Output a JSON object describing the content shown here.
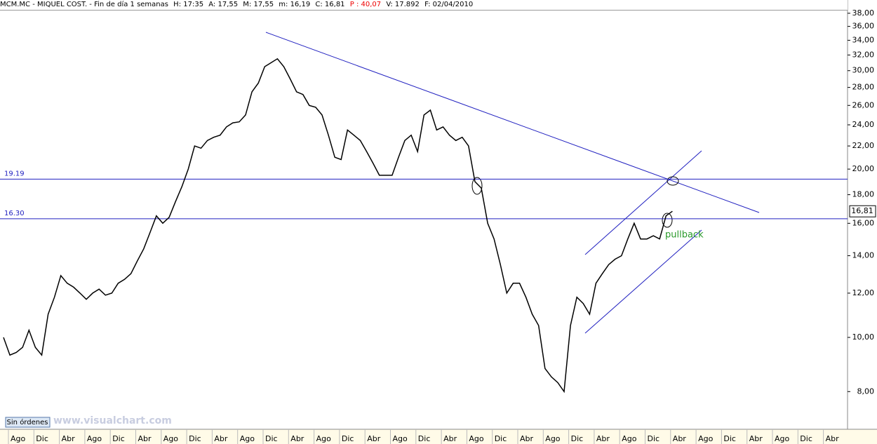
{
  "header": {
    "symbol": "MCM.MC - MIQUEL COST. - Fin de día 1 semanas",
    "fields": [
      "H: 17:35",
      "A: 17,55",
      "M: 17,55",
      "m: 16,19",
      "C: 16,81"
    ],
    "change": "P : 40,07",
    "volume": "V: 17.892",
    "date": "F: 02/04/2010"
  },
  "chart_data": {
    "type": "line",
    "log_scale": true,
    "x_labels": [
      "Ago",
      "Dic",
      "Abr",
      "Ago",
      "Dic",
      "Abr",
      "Ago",
      "Dic",
      "Abr",
      "Ago",
      "Dic",
      "Abr",
      "Ago",
      "Dic",
      "Abr",
      "Ago",
      "Dic",
      "Abr",
      "Ago",
      "Dic",
      "Abr",
      "Ago",
      "Dic",
      "Abr",
      "Ago",
      "Dic",
      "Abr",
      "Ago",
      "Dic",
      "Abr",
      "Ago",
      "Dic",
      "Abr"
    ],
    "series": [
      {
        "name": "MCM.MC",
        "color": "#000000",
        "values": [
          10.0,
          9.3,
          9.4,
          9.6,
          10.3,
          9.6,
          9.3,
          11.0,
          11.8,
          12.9,
          12.5,
          12.3,
          12.0,
          11.7,
          12.0,
          12.2,
          11.9,
          12.0,
          12.5,
          12.7,
          13.0,
          13.7,
          14.4,
          15.4,
          16.5,
          16.0,
          16.4,
          17.5,
          18.6,
          20.0,
          22.0,
          21.8,
          22.5,
          22.8,
          23.0,
          23.8,
          24.2,
          24.3,
          25.0,
          27.5,
          28.5,
          30.5,
          31.0,
          31.5,
          30.5,
          29.0,
          27.5,
          27.2,
          26.0,
          25.8,
          25.0,
          23.0,
          21.0,
          20.8,
          23.5,
          23.0,
          22.5,
          21.5,
          20.5,
          19.5,
          19.5,
          19.5,
          21.0,
          22.5,
          23.0,
          21.5,
          25.0,
          25.5,
          23.5,
          23.8,
          23.0,
          22.5,
          22.8,
          22.0,
          19.0,
          18.5,
          16.0,
          15.0,
          13.5,
          12.0,
          12.5,
          12.5,
          11.8,
          11.0,
          10.5,
          8.8,
          8.5,
          8.3,
          8.0,
          10.5,
          11.8,
          11.5,
          11.0,
          12.5,
          13.0,
          13.5,
          13.8,
          14.0,
          15.0,
          16.0,
          15.0,
          15.0,
          15.2,
          15.0,
          16.5,
          16.81
        ]
      }
    ],
    "ylim": [
      6.85,
      38.1
    ],
    "yticks": [
      {
        "value": 8,
        "label": "8,00"
      },
      {
        "value": 10,
        "label": "10,00"
      },
      {
        "value": 12,
        "label": "12,00"
      },
      {
        "value": 14,
        "label": "14,00"
      },
      {
        "value": 16,
        "label": "16,00"
      },
      {
        "value": 18,
        "label": "18,00"
      },
      {
        "value": 20,
        "label": "20,00"
      },
      {
        "value": 22,
        "label": "22,00"
      },
      {
        "value": 24,
        "label": "24,00"
      },
      {
        "value": 26,
        "label": "26,00"
      },
      {
        "value": 28,
        "label": "28,00"
      },
      {
        "value": 30,
        "label": "30,00"
      },
      {
        "value": 32,
        "label": "32,00"
      },
      {
        "value": 34,
        "label": "34,00"
      },
      {
        "value": 36,
        "label": "36,00"
      },
      {
        "value": 38,
        "label": "38,00"
      }
    ],
    "levels": [
      {
        "value": 19.19,
        "label": "19.19"
      },
      {
        "value": 16.3,
        "label": "16.30"
      }
    ],
    "last_price": "16,81",
    "annotation": "pullback",
    "button": "Sin órdenes",
    "watermark": "www.visualchart.com"
  }
}
